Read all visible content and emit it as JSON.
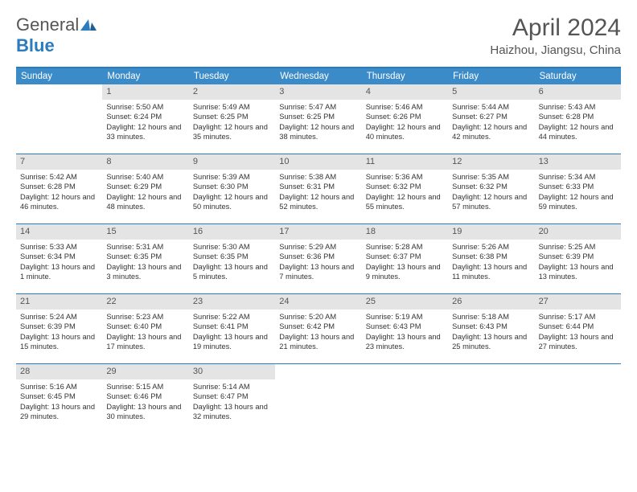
{
  "logo": {
    "general": "General",
    "blue": "Blue"
  },
  "title": "April 2024",
  "location": "Haizhou, Jiangsu, China",
  "colors": {
    "header_bg": "#3b8bc9",
    "border": "#2b7bbf",
    "daynum_bg": "#e4e4e4",
    "text": "#333333",
    "title_text": "#555555"
  },
  "weekdays": [
    "Sunday",
    "Monday",
    "Tuesday",
    "Wednesday",
    "Thursday",
    "Friday",
    "Saturday"
  ],
  "weeks": [
    [
      null,
      {
        "n": "1",
        "sr": "Sunrise: 5:50 AM",
        "ss": "Sunset: 6:24 PM",
        "dl": "Daylight: 12 hours and 33 minutes."
      },
      {
        "n": "2",
        "sr": "Sunrise: 5:49 AM",
        "ss": "Sunset: 6:25 PM",
        "dl": "Daylight: 12 hours and 35 minutes."
      },
      {
        "n": "3",
        "sr": "Sunrise: 5:47 AM",
        "ss": "Sunset: 6:25 PM",
        "dl": "Daylight: 12 hours and 38 minutes."
      },
      {
        "n": "4",
        "sr": "Sunrise: 5:46 AM",
        "ss": "Sunset: 6:26 PM",
        "dl": "Daylight: 12 hours and 40 minutes."
      },
      {
        "n": "5",
        "sr": "Sunrise: 5:44 AM",
        "ss": "Sunset: 6:27 PM",
        "dl": "Daylight: 12 hours and 42 minutes."
      },
      {
        "n": "6",
        "sr": "Sunrise: 5:43 AM",
        "ss": "Sunset: 6:28 PM",
        "dl": "Daylight: 12 hours and 44 minutes."
      }
    ],
    [
      {
        "n": "7",
        "sr": "Sunrise: 5:42 AM",
        "ss": "Sunset: 6:28 PM",
        "dl": "Daylight: 12 hours and 46 minutes."
      },
      {
        "n": "8",
        "sr": "Sunrise: 5:40 AM",
        "ss": "Sunset: 6:29 PM",
        "dl": "Daylight: 12 hours and 48 minutes."
      },
      {
        "n": "9",
        "sr": "Sunrise: 5:39 AM",
        "ss": "Sunset: 6:30 PM",
        "dl": "Daylight: 12 hours and 50 minutes."
      },
      {
        "n": "10",
        "sr": "Sunrise: 5:38 AM",
        "ss": "Sunset: 6:31 PM",
        "dl": "Daylight: 12 hours and 52 minutes."
      },
      {
        "n": "11",
        "sr": "Sunrise: 5:36 AM",
        "ss": "Sunset: 6:32 PM",
        "dl": "Daylight: 12 hours and 55 minutes."
      },
      {
        "n": "12",
        "sr": "Sunrise: 5:35 AM",
        "ss": "Sunset: 6:32 PM",
        "dl": "Daylight: 12 hours and 57 minutes."
      },
      {
        "n": "13",
        "sr": "Sunrise: 5:34 AM",
        "ss": "Sunset: 6:33 PM",
        "dl": "Daylight: 12 hours and 59 minutes."
      }
    ],
    [
      {
        "n": "14",
        "sr": "Sunrise: 5:33 AM",
        "ss": "Sunset: 6:34 PM",
        "dl": "Daylight: 13 hours and 1 minute."
      },
      {
        "n": "15",
        "sr": "Sunrise: 5:31 AM",
        "ss": "Sunset: 6:35 PM",
        "dl": "Daylight: 13 hours and 3 minutes."
      },
      {
        "n": "16",
        "sr": "Sunrise: 5:30 AM",
        "ss": "Sunset: 6:35 PM",
        "dl": "Daylight: 13 hours and 5 minutes."
      },
      {
        "n": "17",
        "sr": "Sunrise: 5:29 AM",
        "ss": "Sunset: 6:36 PM",
        "dl": "Daylight: 13 hours and 7 minutes."
      },
      {
        "n": "18",
        "sr": "Sunrise: 5:28 AM",
        "ss": "Sunset: 6:37 PM",
        "dl": "Daylight: 13 hours and 9 minutes."
      },
      {
        "n": "19",
        "sr": "Sunrise: 5:26 AM",
        "ss": "Sunset: 6:38 PM",
        "dl": "Daylight: 13 hours and 11 minutes."
      },
      {
        "n": "20",
        "sr": "Sunrise: 5:25 AM",
        "ss": "Sunset: 6:39 PM",
        "dl": "Daylight: 13 hours and 13 minutes."
      }
    ],
    [
      {
        "n": "21",
        "sr": "Sunrise: 5:24 AM",
        "ss": "Sunset: 6:39 PM",
        "dl": "Daylight: 13 hours and 15 minutes."
      },
      {
        "n": "22",
        "sr": "Sunrise: 5:23 AM",
        "ss": "Sunset: 6:40 PM",
        "dl": "Daylight: 13 hours and 17 minutes."
      },
      {
        "n": "23",
        "sr": "Sunrise: 5:22 AM",
        "ss": "Sunset: 6:41 PM",
        "dl": "Daylight: 13 hours and 19 minutes."
      },
      {
        "n": "24",
        "sr": "Sunrise: 5:20 AM",
        "ss": "Sunset: 6:42 PM",
        "dl": "Daylight: 13 hours and 21 minutes."
      },
      {
        "n": "25",
        "sr": "Sunrise: 5:19 AM",
        "ss": "Sunset: 6:43 PM",
        "dl": "Daylight: 13 hours and 23 minutes."
      },
      {
        "n": "26",
        "sr": "Sunrise: 5:18 AM",
        "ss": "Sunset: 6:43 PM",
        "dl": "Daylight: 13 hours and 25 minutes."
      },
      {
        "n": "27",
        "sr": "Sunrise: 5:17 AM",
        "ss": "Sunset: 6:44 PM",
        "dl": "Daylight: 13 hours and 27 minutes."
      }
    ],
    [
      {
        "n": "28",
        "sr": "Sunrise: 5:16 AM",
        "ss": "Sunset: 6:45 PM",
        "dl": "Daylight: 13 hours and 29 minutes."
      },
      {
        "n": "29",
        "sr": "Sunrise: 5:15 AM",
        "ss": "Sunset: 6:46 PM",
        "dl": "Daylight: 13 hours and 30 minutes."
      },
      {
        "n": "30",
        "sr": "Sunrise: 5:14 AM",
        "ss": "Sunset: 6:47 PM",
        "dl": "Daylight: 13 hours and 32 minutes."
      },
      null,
      null,
      null,
      null
    ]
  ]
}
